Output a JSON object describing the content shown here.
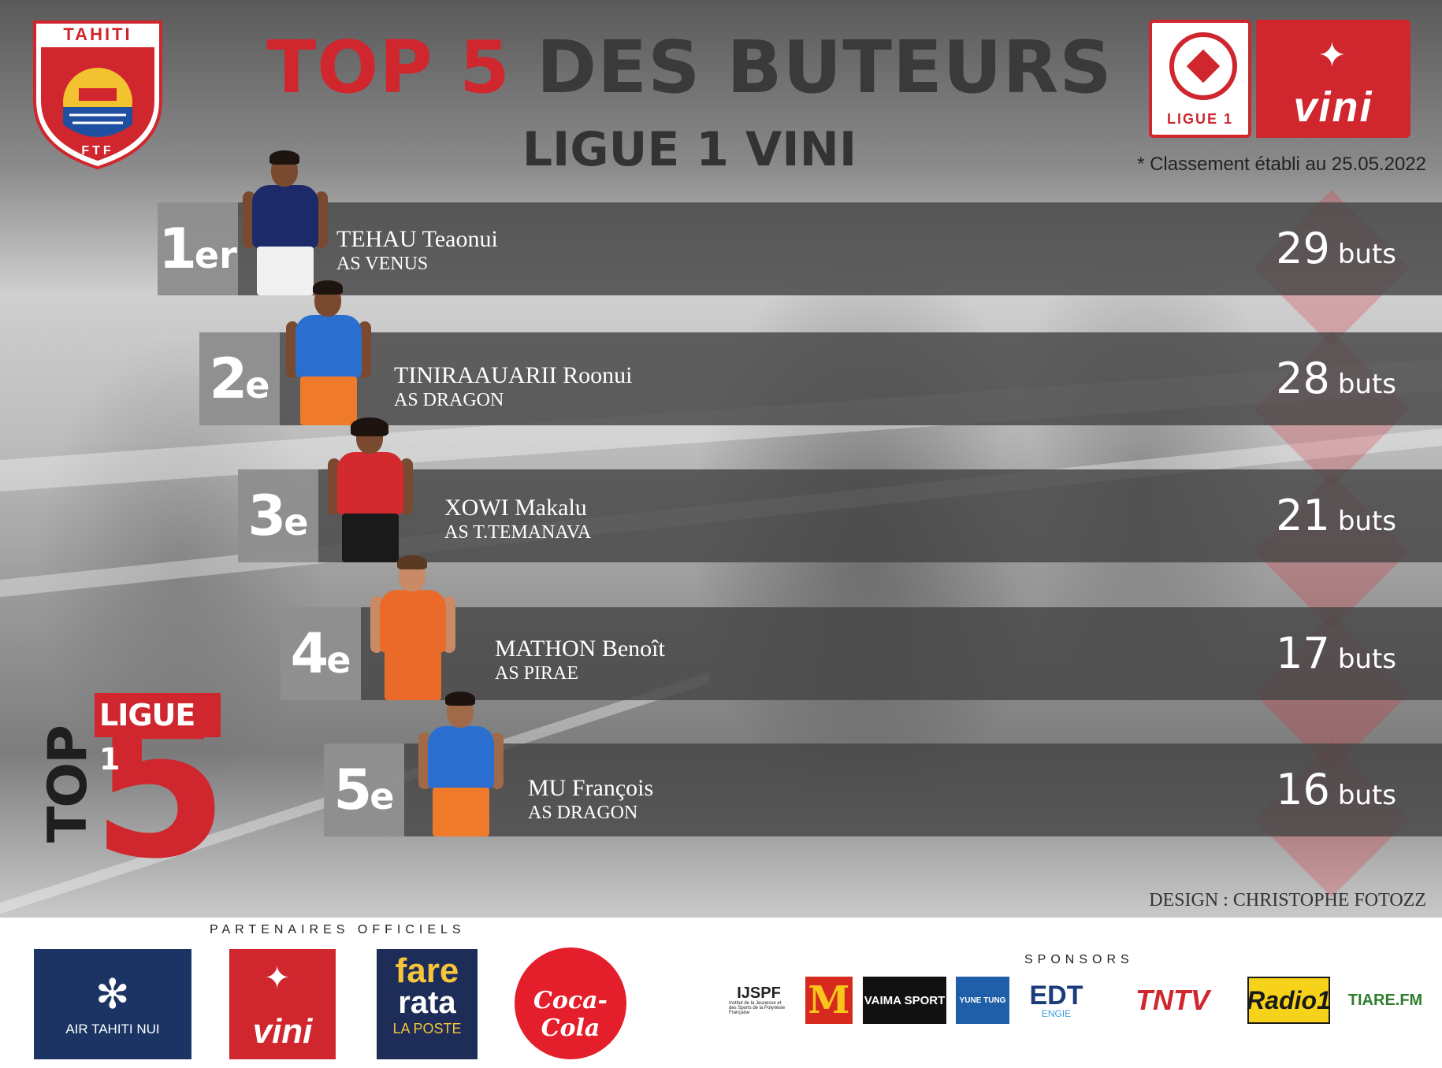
{
  "header": {
    "title_red": "TOP 5",
    "title_rest": "DES BUTEURS",
    "subtitle": "LIGUE 1 VINI",
    "dateline": "* Classement établi au 25.05.2022"
  },
  "badge": {
    "top": "TAHITI",
    "bottom": "FTF"
  },
  "league_logo": {
    "label": "LIGUE 1",
    "brand": "vini"
  },
  "rankings": [
    {
      "rank_num": "1",
      "rank_suffix": "er",
      "name": "TEHAU Teaonui",
      "club": "AS VENUS",
      "goals": "29",
      "unit": "buts"
    },
    {
      "rank_num": "2",
      "rank_suffix": "e",
      "name": "TINIRAAUARII Roonui",
      "club": "AS DRAGON",
      "goals": "28",
      "unit": "buts"
    },
    {
      "rank_num": "3",
      "rank_suffix": "e",
      "name": "XOWI Makalu",
      "club": "AS T.TEMANAVA",
      "goals": "21",
      "unit": "buts"
    },
    {
      "rank_num": "4",
      "rank_suffix": "e",
      "name": "MATHON Benoît",
      "club": "AS PIRAE",
      "goals": "17",
      "unit": "buts"
    },
    {
      "rank_num": "5",
      "rank_suffix": "e",
      "name": "MU François",
      "club": "AS DRAGON",
      "goals": "16",
      "unit": "buts"
    }
  ],
  "emblem": {
    "top": "TOP",
    "five": "5",
    "league": "LIGUE 1"
  },
  "credit": "DESIGN : CHRISTOPHE FOTOZZ",
  "footer": {
    "partners_label": "PARTENAIRES OFFICIELS",
    "sponsors_label": "SPONSORS",
    "partners": {
      "air_tahiti_nui": "AIR TAHITI NUI",
      "vini": "vini",
      "fare_rata_a": "fare",
      "fare_rata_b": "rata",
      "fare_rata_c": "LA POSTE",
      "coca_cola": "Coca-Cola"
    },
    "sponsors": {
      "ijspf": "IJSPF",
      "ijspf_sub": "Institut de la Jeunesse et des Sports de la Polynésie Française",
      "mcdonalds": "M",
      "vaima": "VAIMA SPORT",
      "yune_tung": "YUNE TUNG",
      "edt": "EDT",
      "edt_sub": "ENGIE",
      "tntv": "TNTV",
      "radio1": "Radio1",
      "tiare": "TIARE.FM"
    }
  },
  "colors": {
    "accent_red": "#d0262e",
    "title_dark": "#3a3a3a",
    "row_bg": "#464646",
    "rank_bg": "#969696"
  }
}
